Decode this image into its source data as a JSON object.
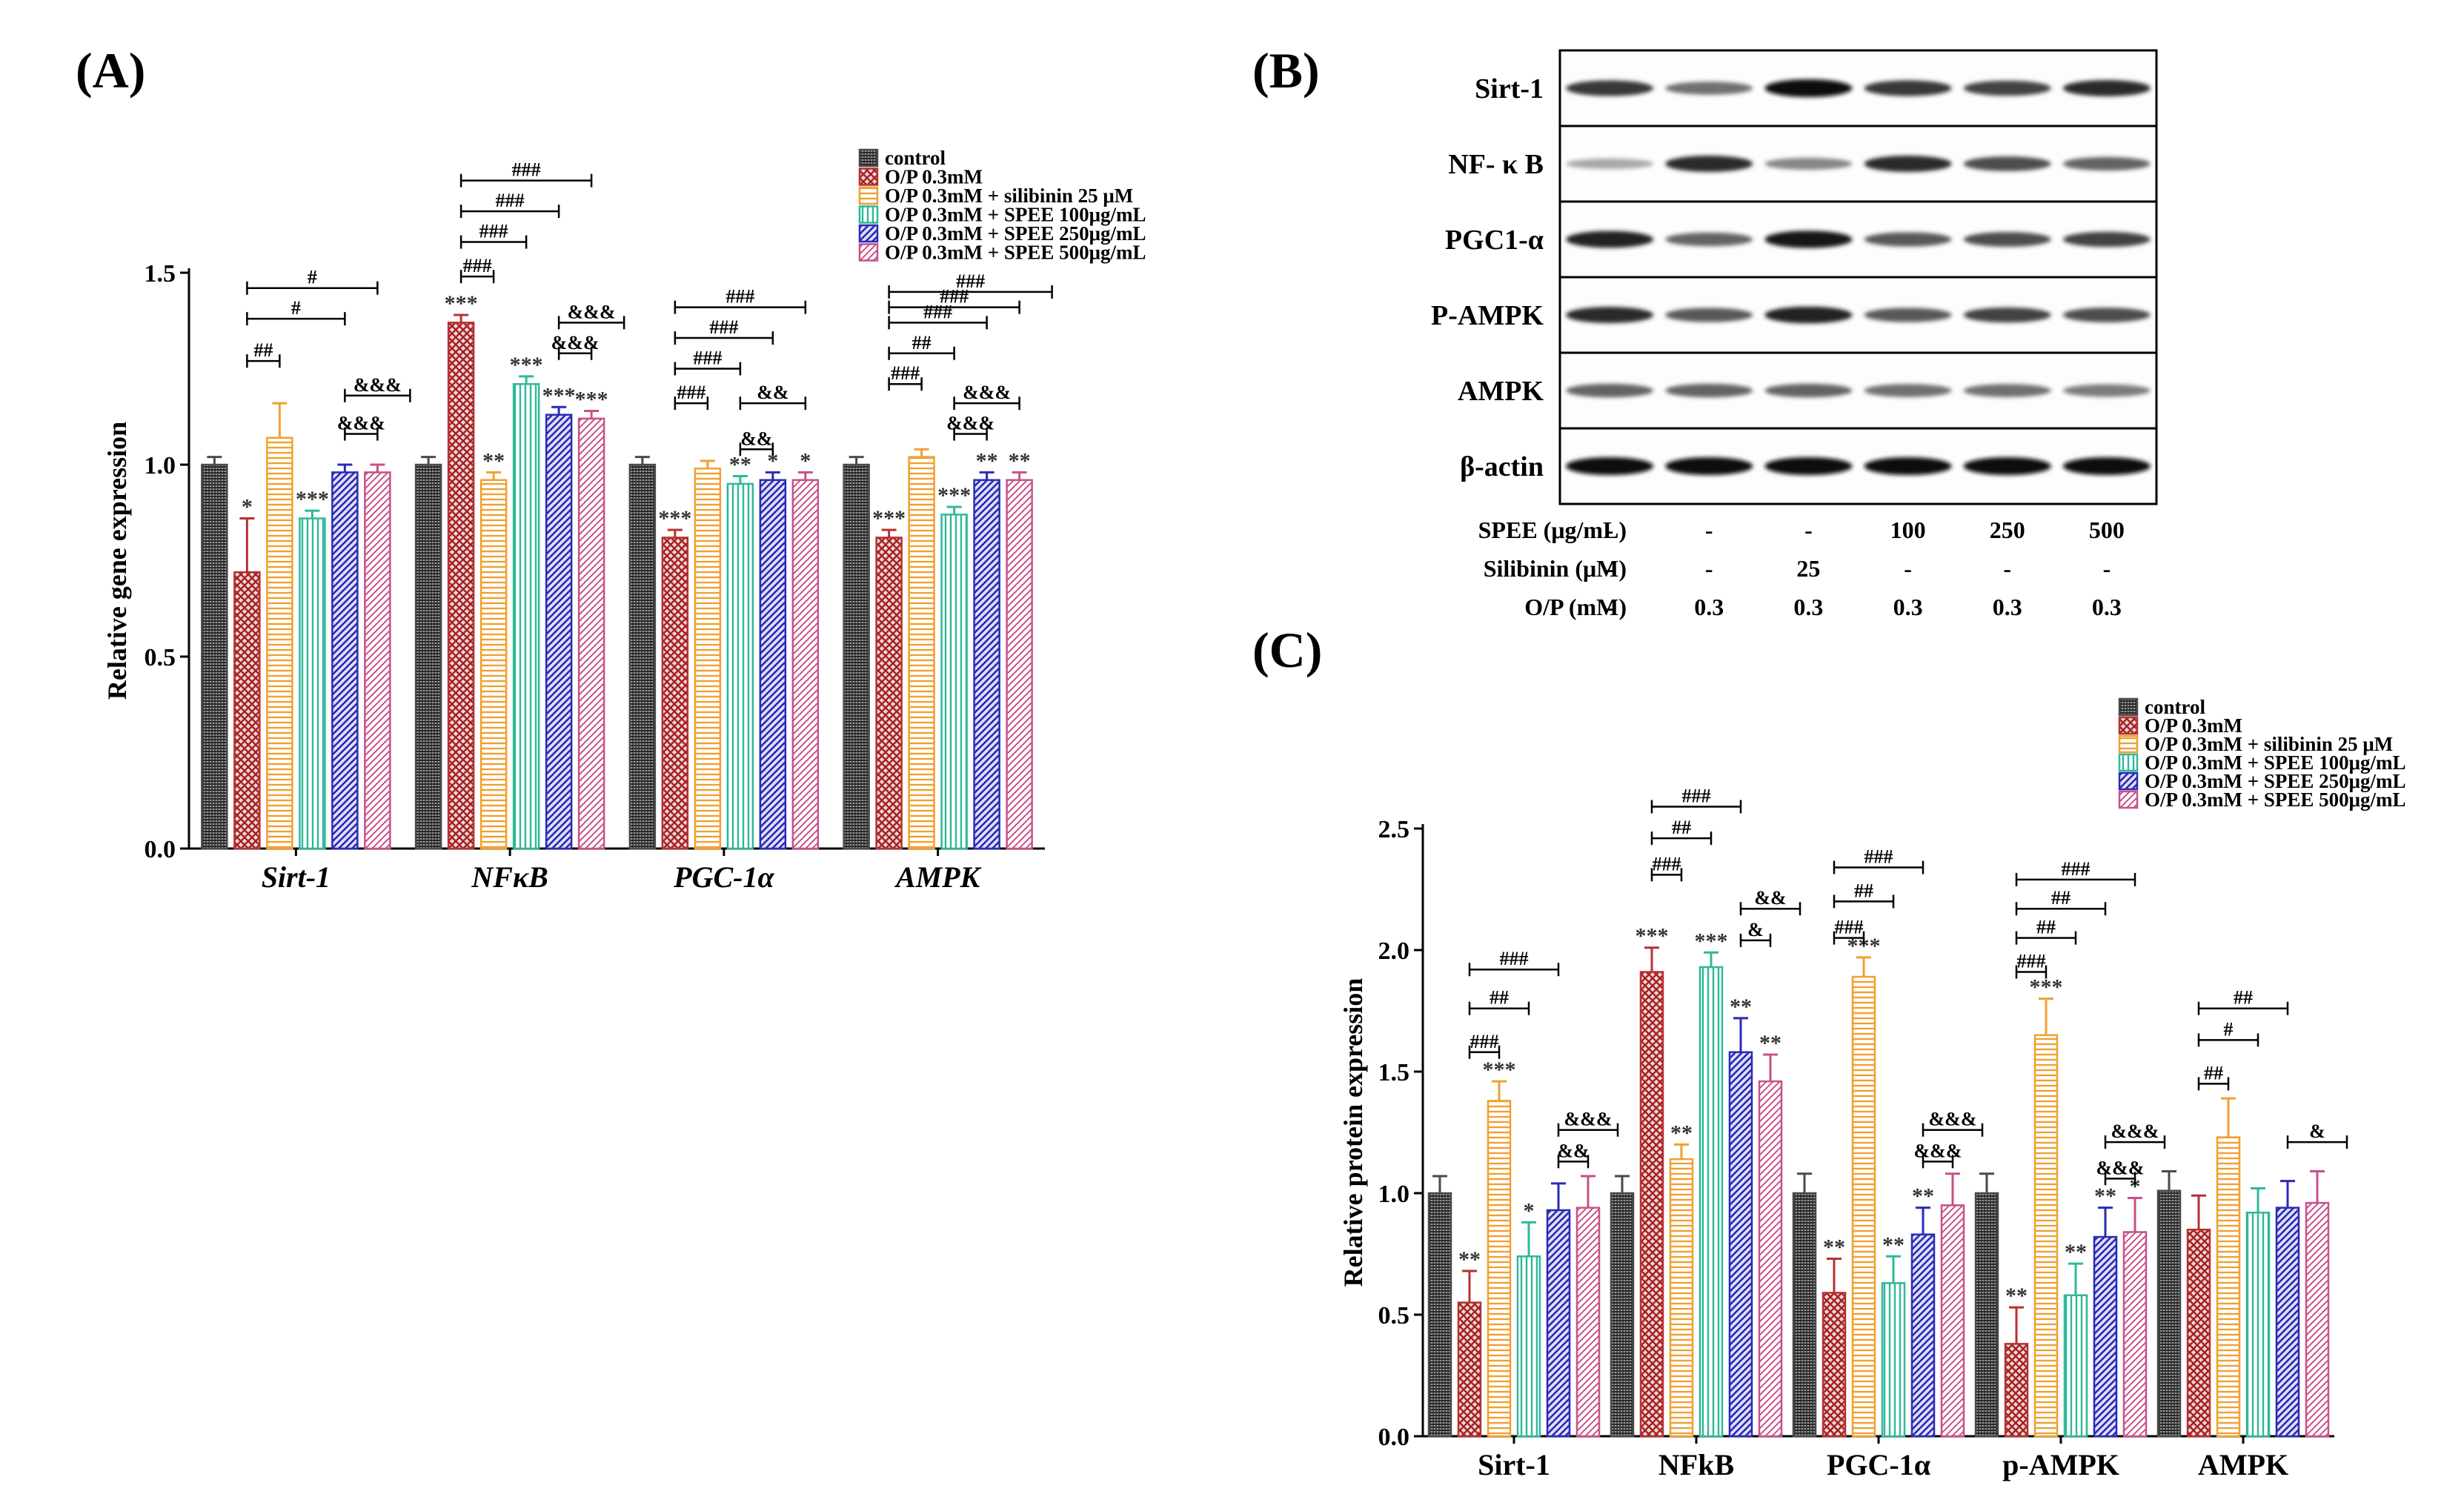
{
  "panel_labels": {
    "a": "(A)",
    "b": "(B)",
    "c": "(C)"
  },
  "colors": {
    "control": "#4a4a4a",
    "op": "#b83030",
    "silibinin": "#f0a030",
    "spee100": "#2fb89a",
    "spee250": "#2a2ab8",
    "spee500": "#c8508a"
  },
  "chart_data": [
    {
      "id": "A",
      "type": "bar",
      "ylabel": "Relative gene expression",
      "xlabel": "",
      "ylim": [
        0,
        1.5
      ],
      "yticks": [
        "0.0",
        "0.5",
        "1.0",
        "1.5"
      ],
      "categories": [
        "Sirt-1",
        "NFκB",
        "PGC-1α",
        "AMPK"
      ],
      "legend_position": "top-right",
      "series": [
        {
          "name": "control",
          "values": [
            1.0,
            1.0,
            1.0,
            1.0
          ],
          "errors": [
            0.02,
            0.02,
            0.02,
            0.02
          ]
        },
        {
          "name": "O/P 0.3mM",
          "values": [
            0.72,
            1.37,
            0.81,
            0.81
          ],
          "errors": [
            0.14,
            0.02,
            0.02,
            0.02
          ]
        },
        {
          "name": "O/P 0.3mM + silibinin 25 μM",
          "values": [
            1.07,
            0.96,
            0.99,
            1.02
          ],
          "errors": [
            0.09,
            0.02,
            0.02,
            0.02
          ]
        },
        {
          "name": "O/P 0.3mM + SPEE 100μg/mL",
          "values": [
            0.86,
            1.21,
            0.95,
            0.87
          ],
          "errors": [
            0.02,
            0.02,
            0.02,
            0.02
          ]
        },
        {
          "name": "O/P 0.3mM + SPEE 250μg/mL",
          "values": [
            0.98,
            1.13,
            0.96,
            0.96
          ],
          "errors": [
            0.02,
            0.02,
            0.02,
            0.02
          ]
        },
        {
          "name": "O/P 0.3mM + SPEE 500μg/mL",
          "values": [
            0.98,
            1.12,
            0.96,
            0.96
          ],
          "errors": [
            0.02,
            0.02,
            0.02,
            0.02
          ]
        }
      ],
      "stars": [
        [
          "",
          "*",
          "",
          "***",
          "",
          ""
        ],
        [
          "",
          "***",
          "**",
          "***",
          "***",
          "***"
        ],
        [
          "",
          "***",
          "",
          "**",
          "*",
          "*"
        ],
        [
          "",
          "***",
          "",
          "***",
          "**",
          "**"
        ]
      ],
      "brackets": [
        [
          [
            1,
            2,
            "##",
            1.27
          ],
          [
            1,
            4,
            "#",
            1.38
          ],
          [
            1,
            5,
            "#",
            1.46
          ],
          [
            4,
            5,
            "&&&",
            1.08
          ],
          [
            4,
            6,
            "&&&",
            1.18
          ]
        ],
        [
          [
            1,
            2,
            "###",
            1.49
          ],
          [
            1,
            3,
            "###",
            1.58
          ],
          [
            1,
            4,
            "###",
            1.66
          ],
          [
            1,
            5,
            "###",
            1.74
          ],
          [
            4,
            5,
            "&&&",
            1.29
          ],
          [
            4,
            6,
            "&&&",
            1.37
          ]
        ],
        [
          [
            1,
            2,
            "###",
            1.16
          ],
          [
            1,
            3,
            "###",
            1.25
          ],
          [
            1,
            4,
            "###",
            1.33
          ],
          [
            1,
            5,
            "###",
            1.41
          ],
          [
            3,
            4,
            "&&",
            1.04
          ],
          [
            3,
            5,
            "&&",
            1.16
          ]
        ],
        [
          [
            1,
            2,
            "###",
            1.21
          ],
          [
            1,
            3,
            "##",
            1.29
          ],
          [
            1,
            4,
            "###",
            1.37
          ],
          [
            1,
            5,
            "###",
            1.41
          ],
          [
            1,
            6,
            "###",
            1.45
          ],
          [
            3,
            4,
            "&&&",
            1.08
          ],
          [
            3,
            5,
            "&&&",
            1.16
          ]
        ]
      ]
    },
    {
      "id": "C",
      "type": "bar",
      "ylabel": "Relative protein expression",
      "xlabel": "",
      "ylim": [
        0,
        2.5
      ],
      "yticks": [
        "0.0",
        "0.5",
        "1.0",
        "1.5",
        "2.0",
        "2.5"
      ],
      "categories": [
        "Sirt-1",
        "NFkB",
        "PGC-1α",
        "p-AMPK",
        "AMPK"
      ],
      "legend_position": "top-right",
      "series": [
        {
          "name": "control",
          "values": [
            1.0,
            1.0,
            1.0,
            1.0,
            1.01
          ],
          "errors": [
            0.07,
            0.07,
            0.08,
            0.08,
            0.08
          ]
        },
        {
          "name": "O/P 0.3mM",
          "values": [
            0.55,
            1.91,
            0.59,
            0.38,
            0.85
          ],
          "errors": [
            0.13,
            0.1,
            0.14,
            0.15,
            0.14
          ]
        },
        {
          "name": "O/P 0.3mM + silibinin 25 μM",
          "values": [
            1.38,
            1.14,
            1.89,
            1.65,
            1.23
          ],
          "errors": [
            0.08,
            0.06,
            0.08,
            0.15,
            0.16
          ]
        },
        {
          "name": "O/P 0.3mM + SPEE 100μg/mL",
          "values": [
            0.74,
            1.93,
            0.63,
            0.58,
            0.92
          ],
          "errors": [
            0.14,
            0.06,
            0.11,
            0.13,
            0.1
          ]
        },
        {
          "name": "O/P 0.3mM + SPEE 250μg/mL",
          "values": [
            0.93,
            1.58,
            0.83,
            0.82,
            0.94
          ],
          "errors": [
            0.11,
            0.14,
            0.11,
            0.12,
            0.11
          ]
        },
        {
          "name": "O/P 0.3mM + SPEE 500μg/mL",
          "values": [
            0.94,
            1.46,
            0.95,
            0.84,
            0.96
          ],
          "errors": [
            0.13,
            0.11,
            0.13,
            0.14,
            0.13
          ]
        }
      ],
      "stars": [
        [
          "",
          "**",
          "***",
          "*",
          "",
          ""
        ],
        [
          "",
          "***",
          "**",
          "***",
          "**",
          "**"
        ],
        [
          "",
          "**",
          "***",
          "**",
          "**",
          ""
        ],
        [
          "",
          "**",
          "***",
          "**",
          "**",
          "*"
        ],
        [
          "",
          "",
          "",
          "",
          "",
          ""
        ]
      ],
      "brackets": [
        [
          [
            1,
            2,
            "###",
            1.58
          ],
          [
            1,
            3,
            "##",
            1.76
          ],
          [
            1,
            4,
            "###",
            1.92
          ],
          [
            4,
            5,
            "&&",
            1.13
          ],
          [
            4,
            6,
            "&&&",
            1.26
          ]
        ],
        [
          [
            1,
            2,
            "###",
            2.31
          ],
          [
            1,
            3,
            "##",
            2.46
          ],
          [
            1,
            4,
            "###",
            2.59
          ],
          [
            4,
            5,
            "&",
            2.04
          ],
          [
            4,
            6,
            "&&",
            2.17
          ]
        ],
        [
          [
            1,
            2,
            "###",
            2.05
          ],
          [
            1,
            3,
            "##",
            2.2
          ],
          [
            1,
            4,
            "###",
            2.34
          ],
          [
            4,
            5,
            "&&&",
            1.13
          ],
          [
            4,
            6,
            "&&&",
            1.26
          ]
        ],
        [
          [
            1,
            2,
            "###",
            1.91
          ],
          [
            1,
            3,
            "##",
            2.05
          ],
          [
            1,
            4,
            "##",
            2.17
          ],
          [
            1,
            5,
            "###",
            2.29
          ],
          [
            4,
            5,
            "&&&",
            1.06
          ],
          [
            4,
            6,
            "&&&",
            1.21
          ]
        ],
        [
          [
            1,
            2,
            "##",
            1.45
          ],
          [
            1,
            3,
            "#",
            1.63
          ],
          [
            1,
            4,
            "##",
            1.76
          ],
          [
            4,
            6,
            "&",
            1.21
          ]
        ]
      ]
    }
  ],
  "blot": {
    "rows": [
      "Sirt-1",
      "NF- κ B",
      "PGC1-α",
      "P-AMPK",
      "AMPK",
      "β-actin"
    ],
    "intensity": [
      [
        0.8,
        0.55,
        1.0,
        0.8,
        0.75,
        0.85
      ],
      [
        0.3,
        0.85,
        0.45,
        0.85,
        0.7,
        0.6
      ],
      [
        0.9,
        0.6,
        0.95,
        0.65,
        0.7,
        0.75
      ],
      [
        0.85,
        0.65,
        0.9,
        0.65,
        0.75,
        0.7
      ],
      [
        0.6,
        0.6,
        0.6,
        0.55,
        0.55,
        0.5
      ],
      [
        1.0,
        1.0,
        1.0,
        1.0,
        1.0,
        1.0
      ]
    ],
    "conditions": [
      {
        "label": "SPEE (μg/mL)",
        "values": [
          "-",
          "-",
          "-",
          "100",
          "250",
          "500"
        ]
      },
      {
        "label": "Silibinin (μM)",
        "values": [
          "-",
          "-",
          "25",
          "-",
          "-",
          "-"
        ]
      },
      {
        "label": "O/P (mM)",
        "values": [
          "-",
          "0.3",
          "0.3",
          "0.3",
          "0.3",
          "0.3"
        ]
      }
    ]
  }
}
